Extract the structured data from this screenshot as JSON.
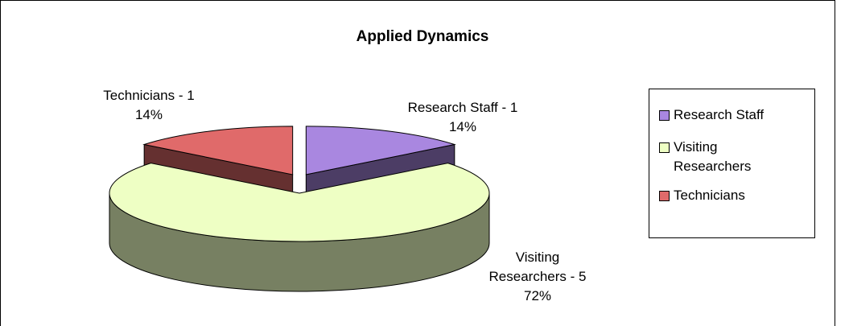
{
  "chart_data": {
    "type": "pie3d",
    "title": "Applied Dynamics",
    "categories": [
      "Research Staff",
      "Visiting Researchers",
      "Technicians"
    ],
    "values": [
      1,
      5,
      1
    ],
    "value_labels": [
      [
        "Research Staff - 1",
        "14%"
      ],
      [
        "Visiting",
        "Researchers - 5",
        "72%"
      ],
      [
        "Technicians - 1",
        "14%"
      ]
    ],
    "colors": [
      "#a987e0",
      "#eeffc4",
      "#e06a6a"
    ],
    "legend": "right"
  }
}
